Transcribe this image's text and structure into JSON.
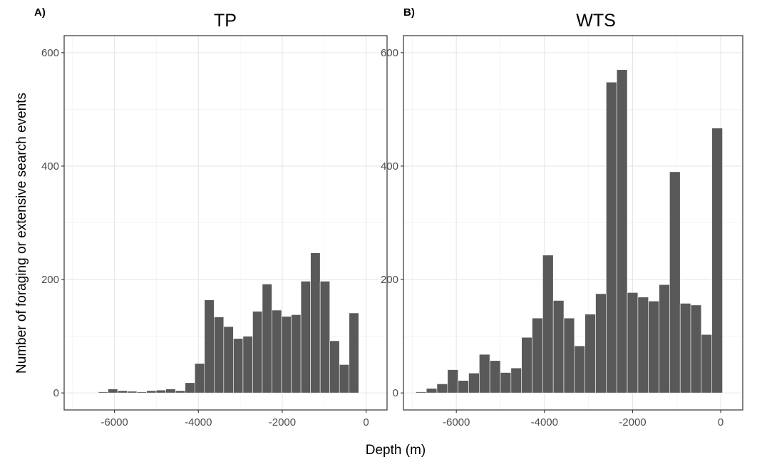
{
  "figure": {
    "ylabel": "Number of foraging or extensive search events",
    "xlabel": "Depth (m)"
  },
  "chart_data": [
    {
      "type": "bar",
      "panel": "A)",
      "title": "TP",
      "xlabel": "Depth (m)",
      "ylabel": "Number of foraging or extensive search events",
      "xlim": [
        -7200,
        500
      ],
      "ylim": [
        -30,
        630
      ],
      "xticks": [
        -6000,
        -4000,
        -2000,
        0
      ],
      "yticks": [
        0,
        200,
        400,
        600
      ],
      "xtick_labels": [
        "-6000",
        "-4000",
        "-2000",
        "0"
      ],
      "ytick_labels": [
        "0",
        "200",
        "400",
        "600"
      ],
      "grid": true,
      "bin_width": 230,
      "x": [
        -6500,
        -6270,
        -6040,
        -5810,
        -5580,
        -5350,
        -5120,
        -4890,
        -4660,
        -4430,
        -4200,
        -3970,
        -3740,
        -3510,
        -3280,
        -3050,
        -2820,
        -2590,
        -2360,
        -2130,
        -1900,
        -1670,
        -1440,
        -1210,
        -980,
        -750,
        -520,
        -290,
        -60
      ],
      "values": [
        0,
        2,
        7,
        4,
        3,
        2,
        4,
        5,
        7,
        4,
        18,
        52,
        164,
        134,
        117,
        96,
        100,
        144,
        192,
        146,
        135,
        138,
        197,
        247,
        197,
        92,
        50,
        141,
        0
      ]
    },
    {
      "type": "bar",
      "panel": "B)",
      "title": "WTS",
      "xlabel": "Depth (m)",
      "ylabel": "",
      "xlim": [
        -7200,
        500
      ],
      "ylim": [
        -30,
        630
      ],
      "xticks": [
        -6000,
        -4000,
        -2000,
        0
      ],
      "yticks": [
        0,
        200,
        400,
        600
      ],
      "xtick_labels": [
        "-6000",
        "-4000",
        "-2000",
        "0"
      ],
      "ytick_labels": [
        "0",
        "200",
        "400",
        "600"
      ],
      "grid": true,
      "bin_width": 240,
      "x": [
        -6800,
        -6560,
        -6320,
        -6080,
        -5840,
        -5600,
        -5360,
        -5120,
        -4880,
        -4640,
        -4400,
        -4160,
        -3920,
        -3680,
        -3440,
        -3200,
        -2960,
        -2720,
        -2480,
        -2240,
        -2000,
        -1760,
        -1520,
        -1280,
        -1040,
        -800,
        -560,
        -320,
        -80
      ],
      "values": [
        2,
        8,
        16,
        41,
        22,
        35,
        68,
        57,
        36,
        44,
        98,
        132,
        243,
        163,
        132,
        83,
        139,
        175,
        548,
        570,
        177,
        169,
        162,
        191,
        390,
        158,
        155,
        103,
        467
      ]
    }
  ]
}
